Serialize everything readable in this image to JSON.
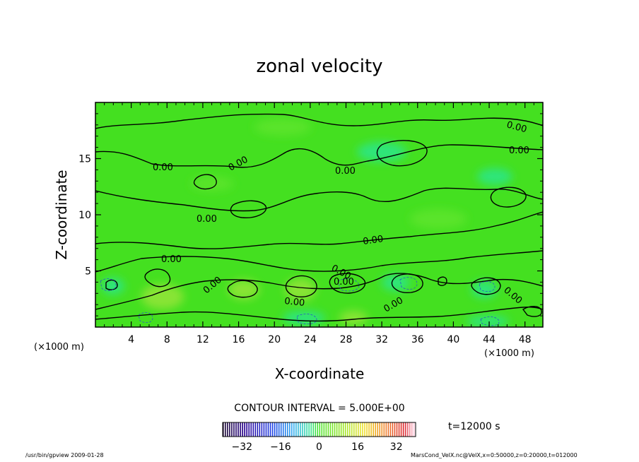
{
  "chart_data": {
    "type": "heatmap",
    "title": "zonal velocity",
    "xlabel": "X-coordinate",
    "ylabel": "Z-coordinate",
    "x_unit_left": "(×1000 m)",
    "x_unit_right": "(×1000 m)",
    "xlim": [
      0,
      50
    ],
    "ylim": [
      0,
      20
    ],
    "x_ticks": [
      4,
      8,
      12,
      16,
      20,
      24,
      28,
      32,
      36,
      40,
      44,
      48
    ],
    "y_ticks": [
      5,
      10,
      15
    ],
    "contour_interval_text": "CONTOUR INTERVAL = 5.000E+00",
    "contour_label_text": "0.00",
    "time_label": "t=12000 s",
    "colorbar": {
      "min": -40,
      "max": 40,
      "ticks": [
        -32,
        -16,
        0,
        16,
        32
      ],
      "tick_labels": [
        "−32",
        "−16",
        "0",
        "16",
        "32"
      ]
    },
    "field_colors": {
      "background": "#44e020",
      "light_patch": "#88e434",
      "cyan_patch": "#2fe57a",
      "contour": "#000000"
    },
    "grid": false
  },
  "footer": {
    "left": "/usr/bin/gpview  2009-01-28",
    "right": "MarsCond_VelX.nc@VelX,x=0:50000,z=0:20000,t=012000"
  }
}
